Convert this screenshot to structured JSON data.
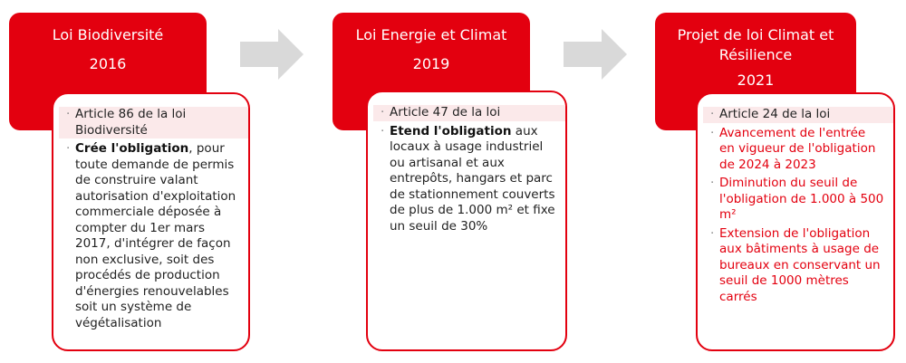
{
  "steps": [
    {
      "title": "Loi Biodiversité",
      "year": "2016",
      "bullets": [
        {
          "text": "Article 86 de la loi Biodiversité"
        },
        {
          "bold": "Crée l'obligation",
          "text": ", pour toute demande de permis de construire valant autorisation d'exploitation commerciale déposée à compter du 1er mars 2017, d'intégrer de façon non exclusive, soit des procédés de production d'énergies renouvelables soit un système de végétalisation"
        }
      ]
    },
    {
      "title": "Loi Energie et Climat",
      "year": "2019",
      "bullets": [
        {
          "text": "Article 47 de la loi"
        },
        {
          "bold": "Etend l'obligation",
          "text": " aux locaux à usage industriel ou artisanal et aux entrepôts, hangars et parc de stationnement couverts de plus de 1.000 m² et fixe un seuil de 30%"
        }
      ]
    },
    {
      "title": "Projet de loi Climat et Résilience",
      "year": "2021",
      "bullets": [
        {
          "text": "Article 24 de la loi"
        },
        {
          "text": "Avancement de l'entrée en vigueur de l'obligation de 2024 à 2023"
        },
        {
          "text": "Diminution du seuil de l'obligation de 1.000 à 500 m²"
        },
        {
          "text": "Extension de l'obligation aux bâtiments à usage de bureaux en conservant un seuil de 1000 mètres carrés"
        }
      ]
    }
  ],
  "colors": {
    "accent": "#e3000f",
    "arrow": "#d9d9d9"
  },
  "icons": [
    "arrow-right-icon",
    "arrow-right-icon"
  ]
}
